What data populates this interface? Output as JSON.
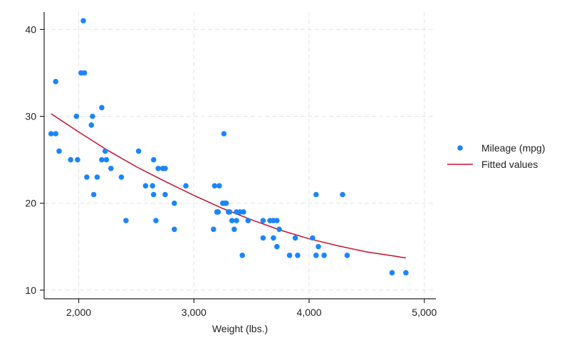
{
  "chart_data": {
    "type": "scatter",
    "xlabel": "Weight (lbs.)",
    "ylabel": "",
    "xlim": [
      1700,
      5100
    ],
    "ylim": [
      9,
      42
    ],
    "x_ticks": [
      2000,
      3000,
      4000,
      5000
    ],
    "x_tick_labels": [
      "2,000",
      "3,000",
      "4,000",
      "5,000"
    ],
    "y_ticks": [
      10,
      20,
      30,
      40
    ],
    "y_tick_labels": [
      "10",
      "20",
      "30",
      "40"
    ],
    "grid": true,
    "legend_position": "right",
    "colors": {
      "points": "#1a85ff",
      "fit": "#c8102e",
      "grid": "#e4e4e4",
      "axis": "#222222"
    },
    "series": [
      {
        "name": "Mileage (mpg)",
        "kind": "scatter",
        "points": [
          [
            1760,
            28
          ],
          [
            1800,
            28
          ],
          [
            1800,
            34
          ],
          [
            1830,
            26
          ],
          [
            1930,
            25
          ],
          [
            1980,
            30
          ],
          [
            1990,
            25
          ],
          [
            2020,
            35
          ],
          [
            2040,
            41
          ],
          [
            2050,
            35
          ],
          [
            2070,
            23
          ],
          [
            2110,
            29
          ],
          [
            2120,
            30
          ],
          [
            2130,
            21
          ],
          [
            2160,
            23
          ],
          [
            2200,
            25
          ],
          [
            2200,
            31
          ],
          [
            2230,
            26
          ],
          [
            2240,
            25
          ],
          [
            2280,
            24
          ],
          [
            2370,
            23
          ],
          [
            2410,
            18
          ],
          [
            2520,
            26
          ],
          [
            2580,
            22
          ],
          [
            2640,
            22
          ],
          [
            2650,
            25
          ],
          [
            2650,
            21
          ],
          [
            2670,
            18
          ],
          [
            2690,
            24
          ],
          [
            2730,
            24
          ],
          [
            2750,
            24
          ],
          [
            2750,
            21
          ],
          [
            2830,
            20
          ],
          [
            2830,
            17
          ],
          [
            2930,
            22
          ],
          [
            3170,
            17
          ],
          [
            3180,
            22
          ],
          [
            3200,
            19
          ],
          [
            3210,
            19
          ],
          [
            3220,
            22
          ],
          [
            3250,
            20
          ],
          [
            3260,
            28
          ],
          [
            3270,
            20
          ],
          [
            3280,
            20
          ],
          [
            3300,
            19
          ],
          [
            3310,
            19
          ],
          [
            3330,
            18
          ],
          [
            3350,
            17
          ],
          [
            3370,
            18
          ],
          [
            3370,
            19
          ],
          [
            3400,
            19
          ],
          [
            3420,
            14
          ],
          [
            3430,
            19
          ],
          [
            3470,
            18
          ],
          [
            3600,
            18
          ],
          [
            3600,
            16
          ],
          [
            3660,
            18
          ],
          [
            3690,
            18
          ],
          [
            3690,
            16
          ],
          [
            3720,
            18
          ],
          [
            3720,
            15
          ],
          [
            3740,
            17
          ],
          [
            3830,
            14
          ],
          [
            3880,
            16
          ],
          [
            3900,
            14
          ],
          [
            4030,
            16
          ],
          [
            4060,
            14
          ],
          [
            4060,
            21
          ],
          [
            4080,
            15
          ],
          [
            4130,
            14
          ],
          [
            4290,
            21
          ],
          [
            4330,
            14
          ],
          [
            4720,
            12
          ],
          [
            4840,
            12
          ]
        ]
      },
      {
        "name": "Fitted values",
        "kind": "line",
        "points": [
          [
            1760,
            30.3
          ],
          [
            2000,
            28.2
          ],
          [
            2250,
            26.1
          ],
          [
            2500,
            24.2
          ],
          [
            2750,
            22.5
          ],
          [
            3000,
            20.9
          ],
          [
            3250,
            19.4
          ],
          [
            3500,
            18.1
          ],
          [
            3750,
            16.9
          ],
          [
            4000,
            15.9
          ],
          [
            4250,
            15.1
          ],
          [
            4500,
            14.4
          ],
          [
            4750,
            13.9
          ],
          [
            4840,
            13.7
          ]
        ]
      }
    ]
  }
}
